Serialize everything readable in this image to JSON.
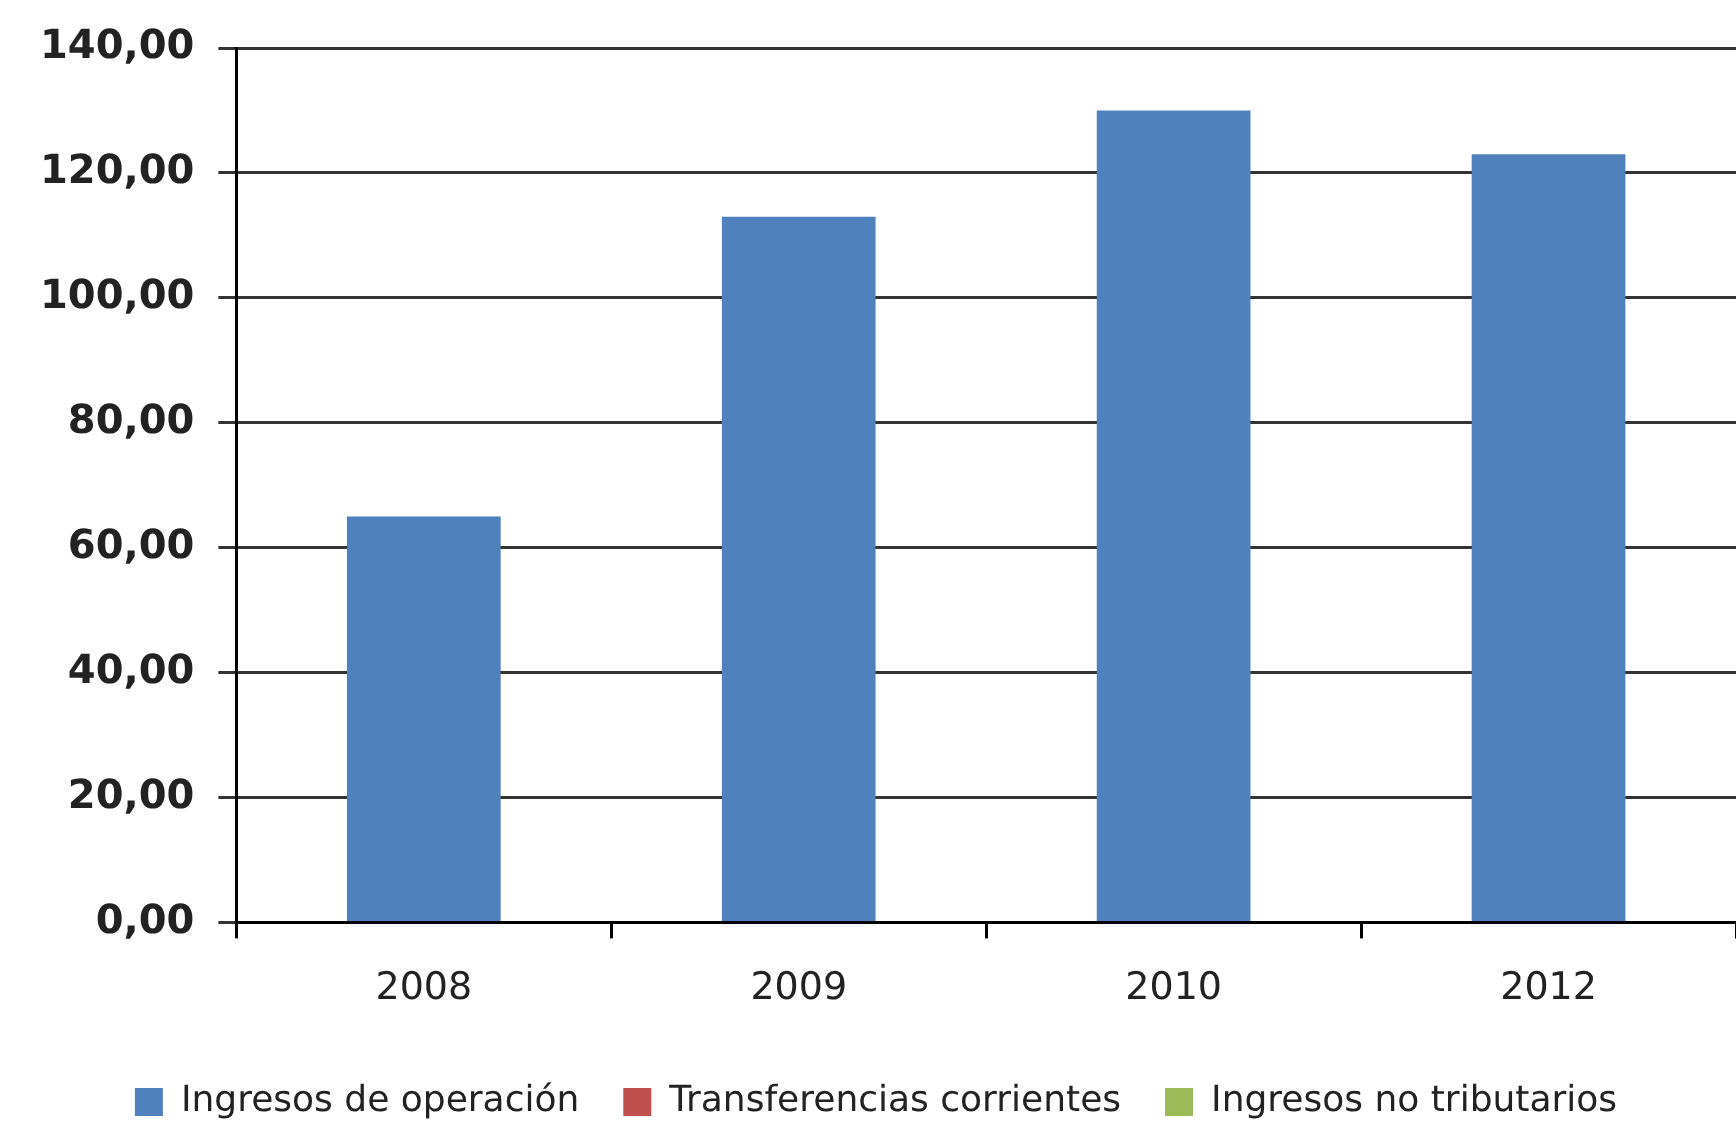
{
  "chart_data": {
    "type": "bar",
    "categories": [
      "2008",
      "2009",
      "2010",
      "2012"
    ],
    "series": [
      {
        "name": "Ingresos de operación",
        "color": "#4f81bd",
        "values": [
          65,
          113,
          130,
          123
        ]
      },
      {
        "name": "Transferencias corrientes",
        "color": "#c0504d",
        "values": [
          null,
          null,
          null,
          null
        ]
      },
      {
        "name": "Ingresos no tributarios",
        "color": "#9bbb59",
        "values": [
          null,
          null,
          null,
          null
        ]
      }
    ],
    "ylim": [
      0,
      140
    ],
    "yticks": [
      {
        "value": 0,
        "label": "0,00"
      },
      {
        "value": 20,
        "label": "20,00"
      },
      {
        "value": 40,
        "label": "40,00"
      },
      {
        "value": 60,
        "label": "60,00"
      },
      {
        "value": 80,
        "label": "80,00"
      },
      {
        "value": 100,
        "label": "100,00"
      },
      {
        "value": 120,
        "label": "120,00"
      },
      {
        "value": 140,
        "label": "140,00"
      }
    ],
    "grid": "y",
    "legend": "bottom"
  }
}
